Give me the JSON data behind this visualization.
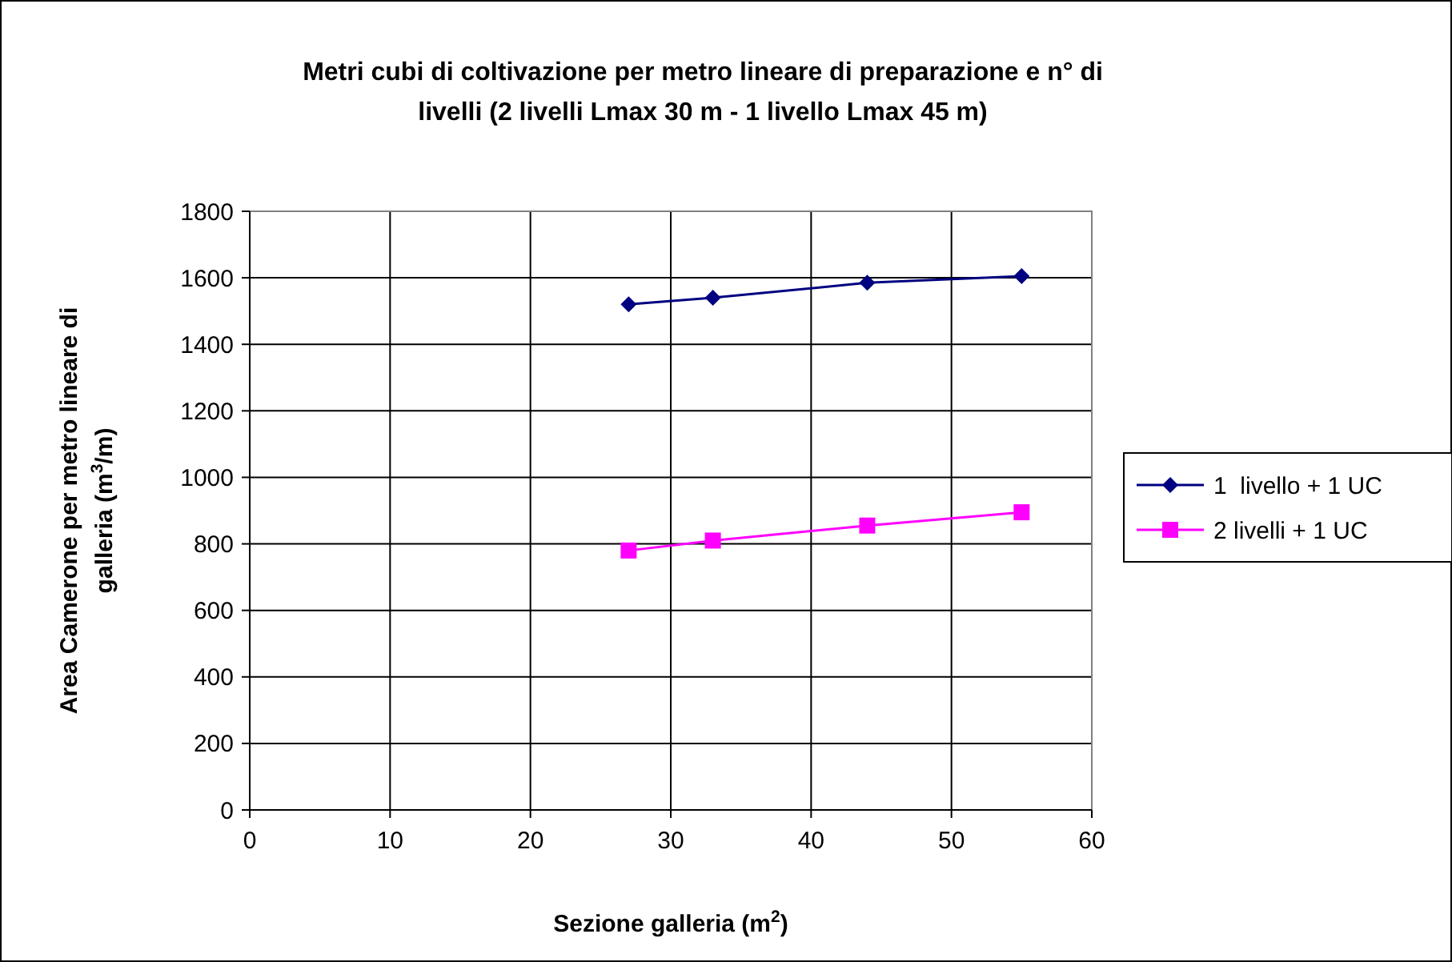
{
  "chart_data": {
    "type": "line",
    "title": "Metri cubi di coltivazione per metro lineare di preparazione e n° di livelli (2 livelli Lmax 30 m - 1 livello Lmax 45 m)",
    "xlabel": "Sezione galleria (m$^{2}$)",
    "ylabel": "Area Camerone per metro lineare di galleria (m$^{3}$/m)",
    "x": [
      27,
      33,
      44,
      55
    ],
    "series": [
      {
        "name": "1  livello + 1 UC",
        "color": "#000080",
        "marker": "diamond",
        "values": [
          1520,
          1540,
          1585,
          1605
        ]
      },
      {
        "name": "2 livelli + 1 UC",
        "color": "#ff00ff",
        "marker": "square",
        "values": [
          780,
          810,
          855,
          895
        ]
      }
    ],
    "xlim": [
      0,
      60
    ],
    "xticks": [
      0,
      10,
      20,
      30,
      40,
      50,
      60
    ],
    "ylim": [
      0,
      1800
    ],
    "yticks": [
      0,
      200,
      400,
      600,
      800,
      1000,
      1200,
      1400,
      1600,
      1800
    ],
    "grid": true,
    "legend": "right"
  }
}
